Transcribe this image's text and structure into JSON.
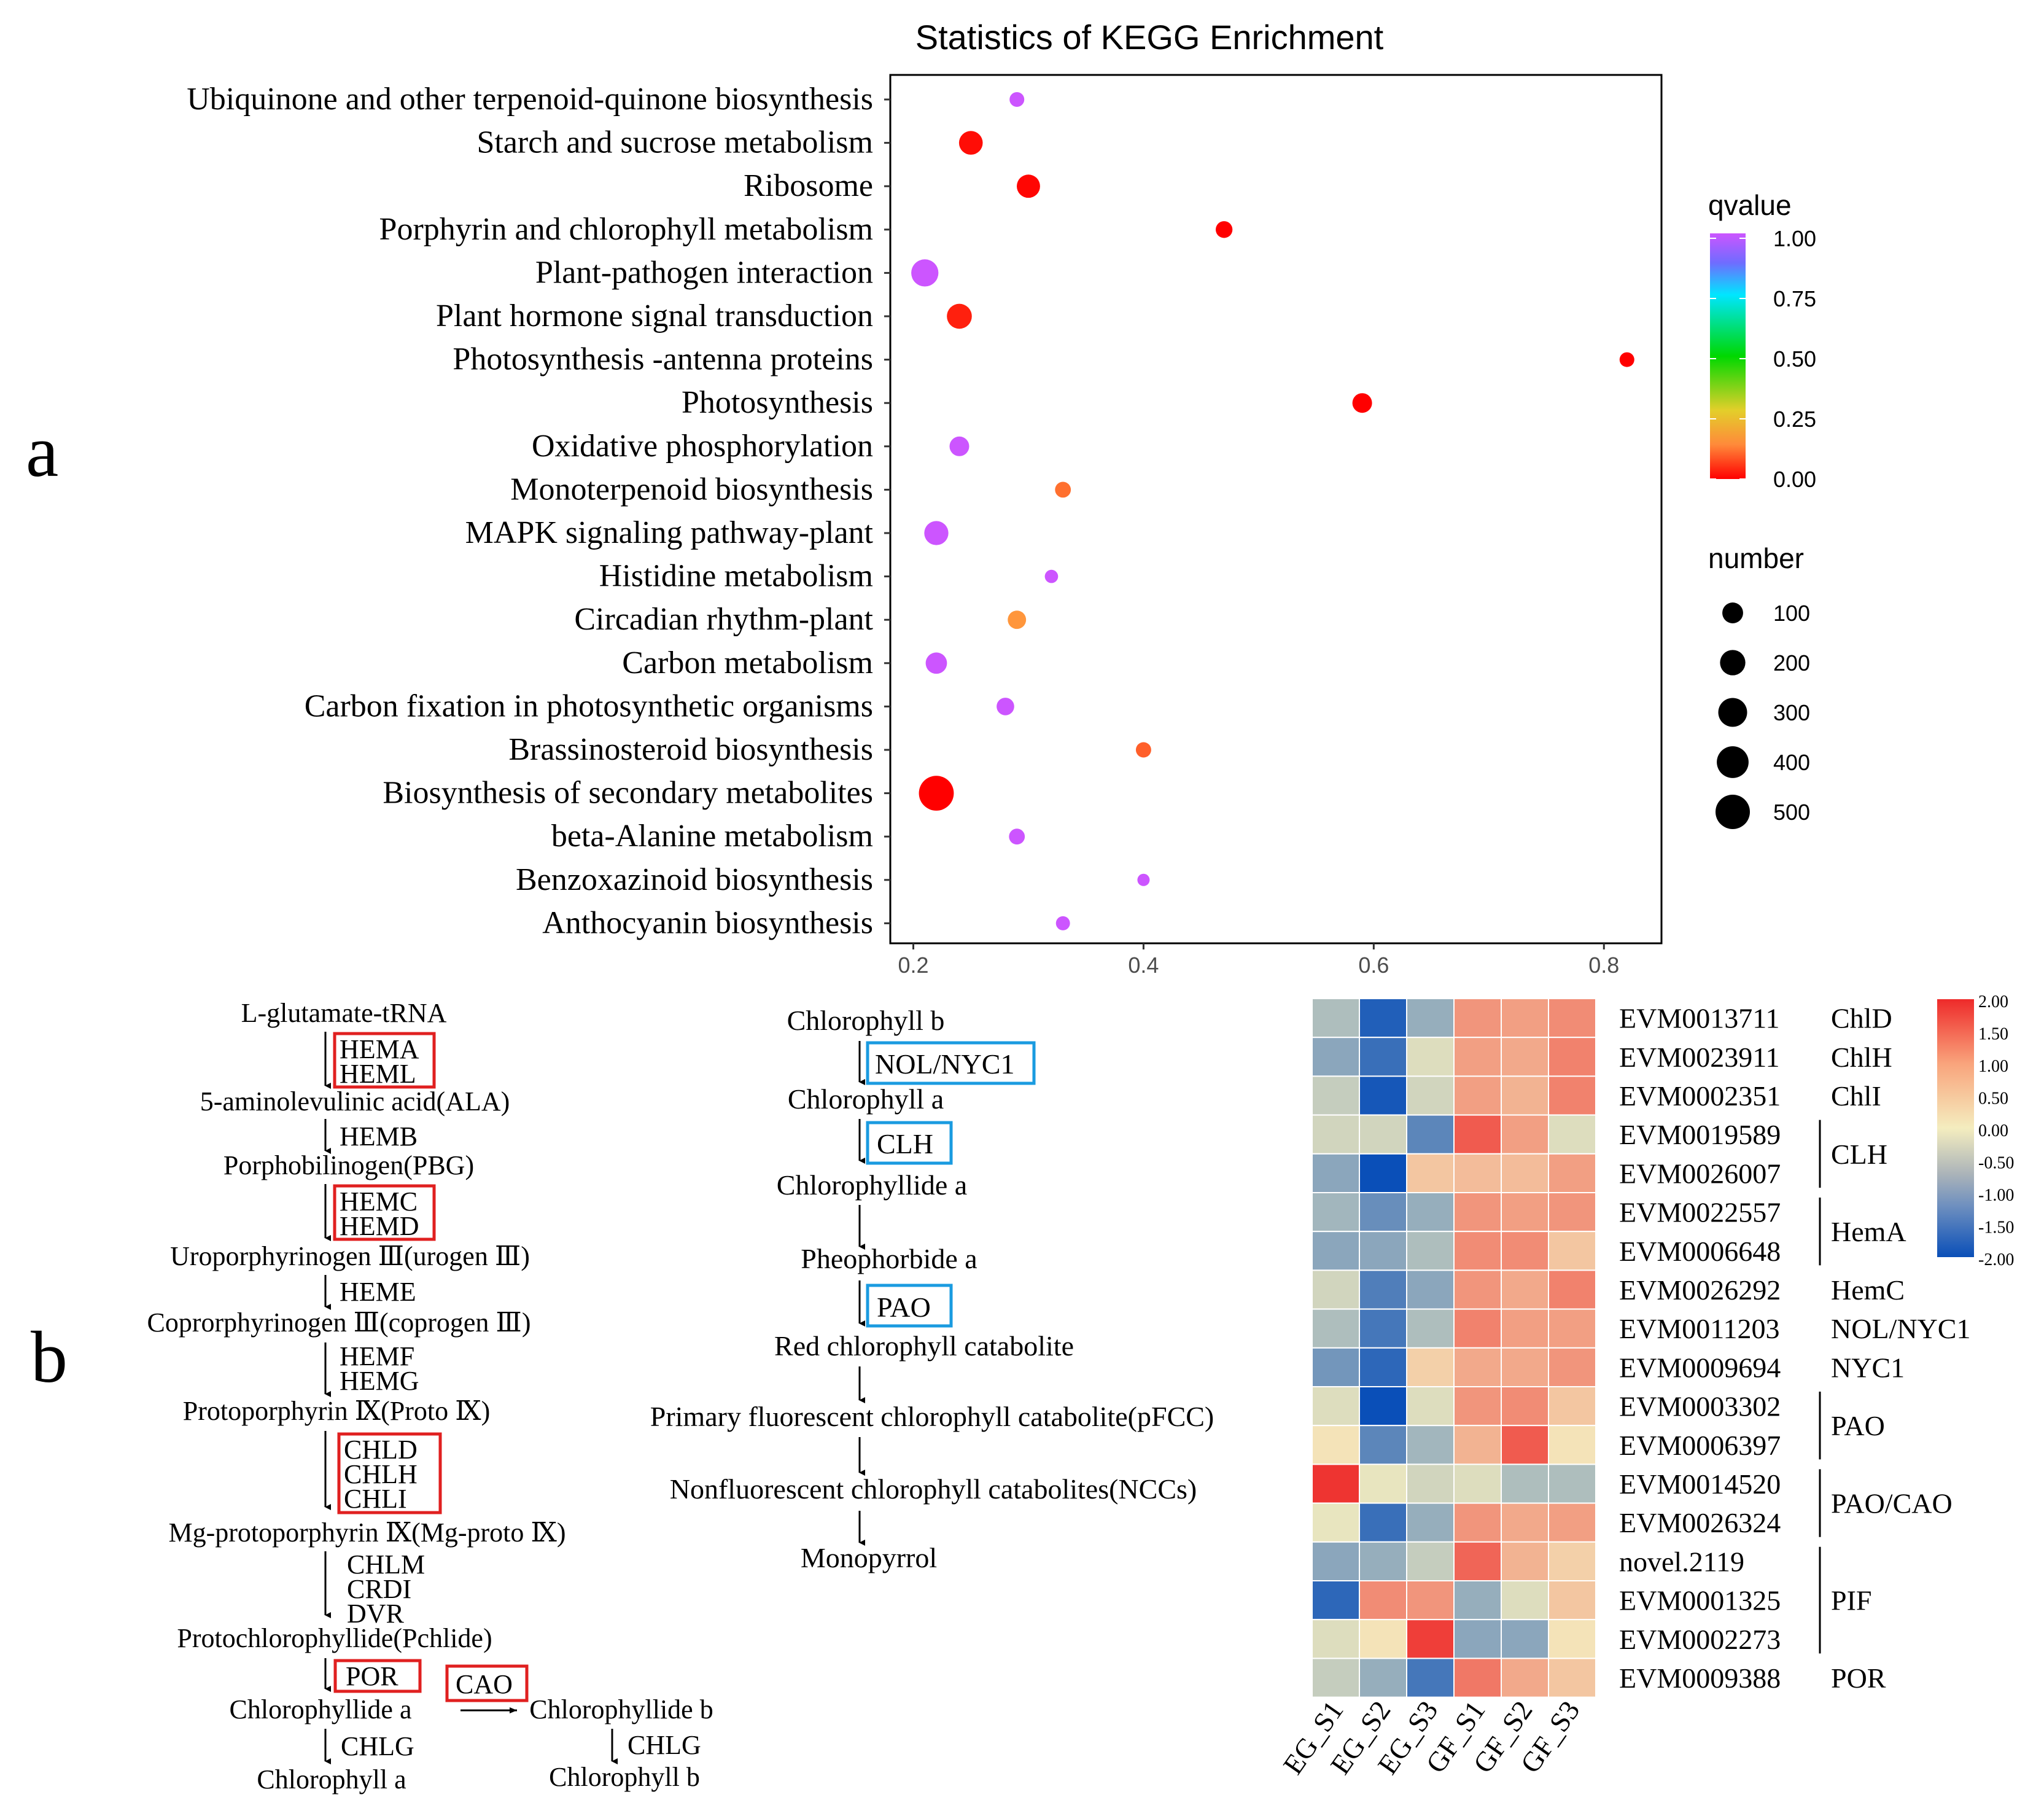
{
  "panel_labels": {
    "a": "a",
    "b": "b"
  },
  "chart_data": {
    "type": "scatter",
    "title": "Statistics of KEGG Enrichment",
    "xlim": [
      0.18,
      0.85
    ],
    "x_ticks": [
      0.2,
      0.4,
      0.6,
      0.8
    ],
    "x_tick_labels": [
      "0.2",
      "0.4",
      "0.6",
      "0.8"
    ],
    "pathways": [
      {
        "name": "Ubiquinone and other terpenoid-quinone biosynthesis",
        "x": 0.29,
        "number": 20,
        "qvalue": 1.0
      },
      {
        "name": "Starch and sucrose metabolism",
        "x": 0.25,
        "number": 160,
        "qvalue": 0.02
      },
      {
        "name": "Ribosome",
        "x": 0.3,
        "number": 150,
        "qvalue": 0.01
      },
      {
        "name": "Porphyrin and chlorophyll metabolism",
        "x": 0.47,
        "number": 40,
        "qvalue": 0.0
      },
      {
        "name": "Plant-pathogen interaction",
        "x": 0.21,
        "number": 250,
        "qvalue": 1.0
      },
      {
        "name": "Plant hormone signal transduction",
        "x": 0.24,
        "number": 190,
        "qvalue": 0.05
      },
      {
        "name": "Photosynthesis -antenna proteins",
        "x": 0.82,
        "number": 20,
        "qvalue": 0.0
      },
      {
        "name": "Photosynthesis",
        "x": 0.59,
        "number": 80,
        "qvalue": 0.0
      },
      {
        "name": "Oxidative phosphorylation",
        "x": 0.24,
        "number": 80,
        "qvalue": 1.0
      },
      {
        "name": "Monoterpenoid biosynthesis",
        "x": 0.33,
        "number": 30,
        "qvalue": 0.18
      },
      {
        "name": "MAPK signaling pathway-plant",
        "x": 0.22,
        "number": 170,
        "qvalue": 1.0
      },
      {
        "name": "Histidine metabolism",
        "x": 0.32,
        "number": 10,
        "qvalue": 1.0
      },
      {
        "name": "Circadian rhythm-plant",
        "x": 0.29,
        "number": 60,
        "qvalue": 0.25
      },
      {
        "name": "Carbon metabolism",
        "x": 0.22,
        "number": 110,
        "qvalue": 1.0
      },
      {
        "name": "Carbon fixation in photosynthetic organisms",
        "x": 0.28,
        "number": 50,
        "qvalue": 1.0
      },
      {
        "name": "Brassinosteroid biosynthesis",
        "x": 0.4,
        "number": 25,
        "qvalue": 0.15
      },
      {
        "name": "Biosynthesis of secondary metabolites",
        "x": 0.22,
        "number": 520,
        "qvalue": 0.0
      },
      {
        "name": "beta-Alanine metabolism",
        "x": 0.29,
        "number": 30,
        "qvalue": 1.0
      },
      {
        "name": "Benzoxazinoid biosynthesis",
        "x": 0.4,
        "number": 5,
        "qvalue": 1.0
      },
      {
        "name": "Anthocyanin biosynthesis",
        "x": 0.33,
        "number": 15,
        "qvalue": 1.0
      }
    ],
    "color_legend": {
      "title": "qvalue",
      "ticks": [
        "1.00",
        "0.75",
        "0.50",
        "0.25",
        "0.00"
      ]
    },
    "size_legend": {
      "title": "number",
      "values": [
        100,
        200,
        300,
        400,
        500
      ],
      "labels": [
        "100",
        "200",
        "300",
        "400",
        "500"
      ]
    }
  },
  "pathway_left": {
    "compounds": [
      "L-glutamate-tRNA",
      "5-aminolevulinic acid(ALA)",
      "Porphobilinogen(PBG)",
      "Uroporphyrinogen Ⅲ(urogen Ⅲ)",
      "Coprorphyrinogen Ⅲ(coprogen Ⅲ)",
      "Protoporphyrin Ⅸ(Proto Ⅸ)",
      "Mg-protoporphyrin Ⅸ(Mg-proto Ⅸ)",
      "Protochlorophyllide(Pchlide)",
      "Chlorophyllide a",
      "Chlorophyll a"
    ],
    "enzymes": {
      "hema": "HEMA",
      "heml": "HEML",
      "hemb": "HEMB",
      "hemc": "HEMC",
      "hemd": "HEMD",
      "heme": "HEME",
      "hemf": "HEMF",
      "hemg": "HEMG",
      "chld": "CHLD",
      "chlh": "CHLH",
      "chli": "CHLI",
      "chlm": "CHLM",
      "crdi": "CRDI",
      "dvr": "DVR",
      "por": "POR",
      "cao": "CAO",
      "chlg1": "CHLG",
      "chlg2": "CHLG"
    },
    "chlorophyllide_b": "Chlorophyllide b",
    "chlorophyll_b": "Chlorophyll b"
  },
  "pathway_mid": {
    "compounds": [
      "Chlorophyll b",
      "Chlorophyll a",
      "Chlorophyllide a",
      "Pheophorbide a",
      "Red chlorophyll catabolite",
      "Primary fluorescent chlorophyll catabolite(pFCC)",
      "Nonfluorescent chlorophyll catabolites(NCCs)",
      "Monopyrrol"
    ],
    "enzymes": {
      "nol": "NOL/NYC1",
      "clh": "CLH",
      "pao": "PAO"
    }
  },
  "heatmap": {
    "columns": [
      "EG_S1",
      "EG_S2",
      "EG_S3",
      "GF_S1",
      "GF_S2",
      "GF_S3"
    ],
    "rows": [
      {
        "id": "EVM0013711",
        "values": [
          -0.6,
          -1.8,
          -0.8,
          0.9,
          0.8,
          1.0
        ]
      },
      {
        "id": "EVM0023911",
        "values": [
          -0.9,
          -1.6,
          -0.2,
          0.8,
          0.7,
          1.1
        ]
      },
      {
        "id": "EVM0002351",
        "values": [
          -0.4,
          -1.9,
          -0.3,
          0.8,
          0.6,
          1.1
        ]
      },
      {
        "id": "EVM0019589",
        "values": [
          -0.3,
          -0.3,
          -1.3,
          1.5,
          0.8,
          -0.2
        ]
      },
      {
        "id": "EVM0026007",
        "values": [
          -0.9,
          -2.0,
          0.4,
          0.5,
          0.5,
          0.8
        ]
      },
      {
        "id": "EVM0022557",
        "values": [
          -0.7,
          -1.2,
          -0.8,
          0.9,
          0.8,
          0.9
        ]
      },
      {
        "id": "EVM0006648",
        "values": [
          -0.9,
          -0.9,
          -0.6,
          1.0,
          1.0,
          0.4
        ]
      },
      {
        "id": "EVM0026292",
        "values": [
          -0.3,
          -1.4,
          -0.9,
          0.9,
          0.7,
          1.1
        ]
      },
      {
        "id": "EVM0011203",
        "values": [
          -0.6,
          -1.5,
          -0.6,
          1.1,
          0.8,
          0.8
        ]
      },
      {
        "id": "EVM0009694",
        "values": [
          -1.1,
          -1.7,
          0.3,
          0.7,
          0.7,
          0.9
        ]
      },
      {
        "id": "EVM0003302",
        "values": [
          -0.2,
          -2.0,
          -0.2,
          0.9,
          1.0,
          0.4
        ]
      },
      {
        "id": "EVM0006397",
        "values": [
          0.1,
          -1.3,
          -0.7,
          0.6,
          1.5,
          0.1
        ]
      },
      {
        "id": "EVM0014520",
        "values": [
          1.9,
          -0.1,
          -0.3,
          -0.2,
          -0.6,
          -0.6
        ]
      },
      {
        "id": "EVM0026324",
        "values": [
          -0.1,
          -1.6,
          -0.8,
          0.9,
          0.7,
          0.8
        ]
      },
      {
        "id": "novel.2119",
        "values": [
          -0.9,
          -0.8,
          -0.4,
          1.4,
          0.6,
          0.3
        ]
      },
      {
        "id": "EVM0001325",
        "values": [
          -1.7,
          1.0,
          0.9,
          -0.8,
          -0.2,
          0.4
        ]
      },
      {
        "id": "EVM0002273",
        "values": [
          -0.2,
          0.1,
          1.8,
          -0.9,
          -0.9,
          0.1
        ]
      },
      {
        "id": "EVM0009388",
        "values": [
          -0.4,
          -0.8,
          -1.5,
          1.2,
          0.7,
          0.4
        ]
      }
    ],
    "groups": [
      {
        "label": "ChlD",
        "start": 0,
        "end": 0,
        "bracket": false
      },
      {
        "label": "ChlH",
        "start": 1,
        "end": 1,
        "bracket": false
      },
      {
        "label": "ChlI",
        "start": 2,
        "end": 2,
        "bracket": false
      },
      {
        "label": "CLH",
        "start": 3,
        "end": 4,
        "bracket": true
      },
      {
        "label": "HemA",
        "start": 5,
        "end": 6,
        "bracket": true
      },
      {
        "label": "HemC",
        "start": 7,
        "end": 7,
        "bracket": false
      },
      {
        "label": "NOL/NYC1",
        "start": 8,
        "end": 8,
        "bracket": false
      },
      {
        "label": "NYC1",
        "start": 9,
        "end": 9,
        "bracket": false
      },
      {
        "label": "PAO",
        "start": 10,
        "end": 11,
        "bracket": true
      },
      {
        "label": "PAO/CAO",
        "start": 12,
        "end": 13,
        "bracket": true
      },
      {
        "label": "PIF",
        "start": 14,
        "end": 16,
        "bracket": true
      },
      {
        "label": "POR",
        "start": 17,
        "end": 17,
        "bracket": false
      }
    ],
    "scale_ticks": [
      "2.00",
      "1.50",
      "1.00",
      "0.50",
      "0.00",
      "-0.50",
      "-1.00",
      "-1.50",
      "-2.00"
    ],
    "colors": {
      "low": "#0a4fb8",
      "mid": "#f4edbf",
      "high": "#ee2a2a"
    }
  }
}
